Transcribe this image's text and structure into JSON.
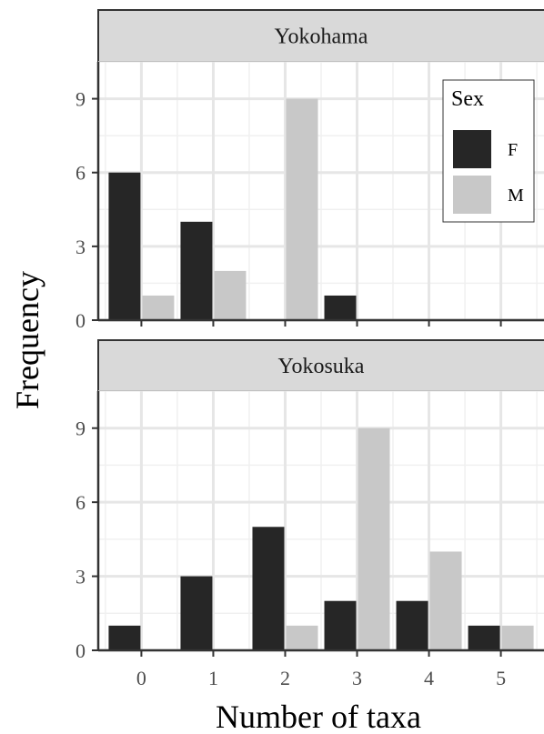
{
  "chart_data": {
    "type": "bar",
    "xlabel": "Number of taxa",
    "ylabel": "Frequency",
    "x_ticks": [
      "0",
      "1",
      "2",
      "3",
      "4",
      "5"
    ],
    "y_ticks": [
      "0",
      "3",
      "6",
      "9"
    ],
    "ylim": [
      0,
      10.5
    ],
    "xlim": [
      -0.6,
      5.6
    ],
    "grid": true,
    "legend": {
      "title": "Sex",
      "position": "top-right of first panel",
      "entries": [
        {
          "label": "F",
          "color": "#262626"
        },
        {
          "label": "M",
          "color": "#c8c8c8"
        }
      ]
    },
    "panels": [
      {
        "title": "Yokohama",
        "series": [
          {
            "name": "F",
            "x": [
              0,
              1,
              3
            ],
            "values": [
              6,
              4,
              1
            ]
          },
          {
            "name": "M",
            "x": [
              0,
              1,
              2
            ],
            "values": [
              1,
              2,
              9
            ]
          }
        ]
      },
      {
        "title": "Yokosuka",
        "series": [
          {
            "name": "F",
            "x": [
              0,
              1,
              2,
              3,
              4,
              5
            ],
            "values": [
              1,
              3,
              5,
              2,
              2,
              1
            ]
          },
          {
            "name": "M",
            "x": [
              2,
              3,
              4,
              5
            ],
            "values": [
              1,
              9,
              4,
              1
            ]
          }
        ]
      }
    ]
  }
}
